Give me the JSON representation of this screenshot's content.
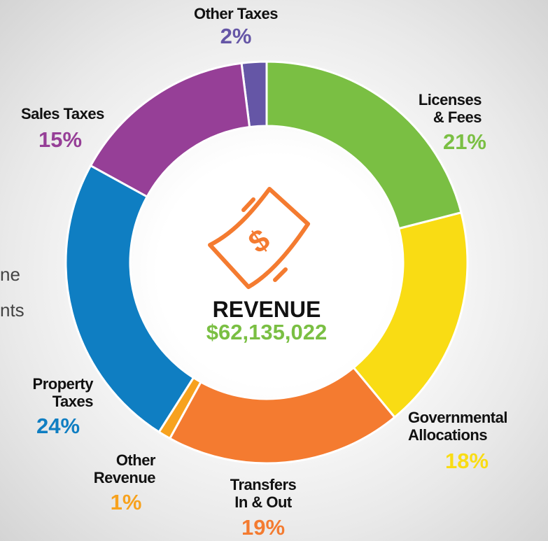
{
  "chart_data": {
    "type": "donut",
    "center_title": "REVENUE",
    "center_value": "$62,135,022",
    "categories": [
      "Licenses\n& Fees",
      "Governmental\nAllocations",
      "Transfers\nIn & Out",
      "Other\nRevenue",
      "Property\nTaxes",
      "Sales Taxes",
      "Other Taxes"
    ],
    "values": [
      21,
      18,
      19,
      1,
      24,
      15,
      2
    ],
    "value_labels": [
      "21%",
      "18%",
      "19%",
      "1%",
      "24%",
      "15%",
      "2%"
    ],
    "colors": [
      "#7abf43",
      "#f9dc14",
      "#f47b30",
      "#f7a21e",
      "#0f7ec2",
      "#963f97",
      "#6556a6"
    ],
    "background_text": [
      "ne",
      "nts"
    ]
  }
}
